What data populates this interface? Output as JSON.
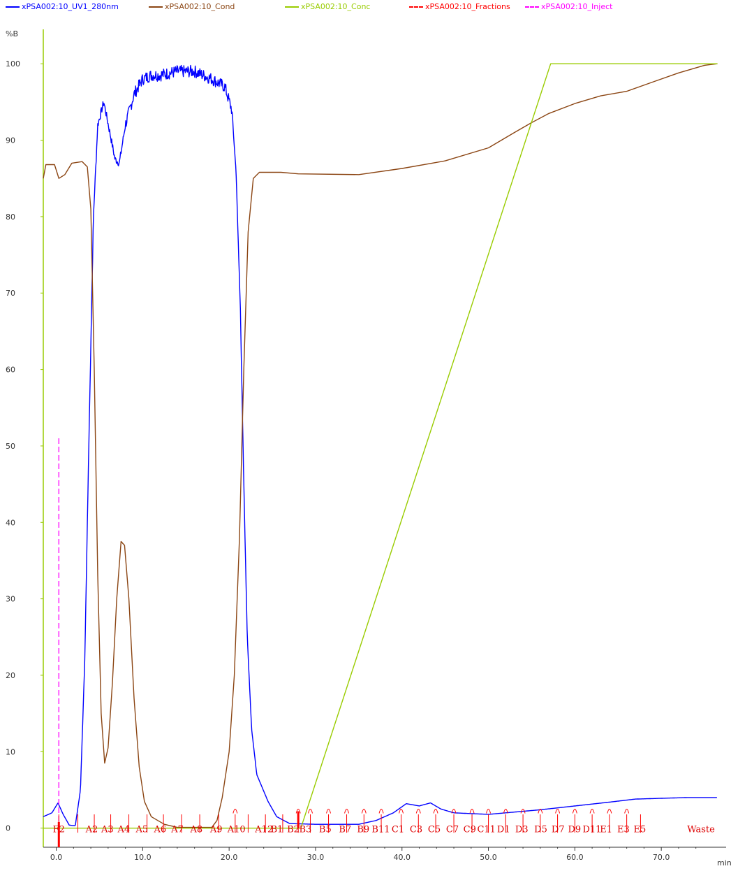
{
  "legend": [
    {
      "name": "xPSA002:10_UV1_280nm",
      "color": "#0000ff",
      "dash": "solid"
    },
    {
      "name": "xPSA002:10_Cond",
      "color": "#8b4513",
      "dash": "solid"
    },
    {
      "name": "xPSA002:10_Conc",
      "color": "#99cc00",
      "dash": "solid"
    },
    {
      "name": "xPSA002:10_Fractions",
      "color": "#ff0000",
      "dash": "dashed"
    },
    {
      "name": "xPSA002:10_Inject",
      "color": "#ff00ff",
      "dash": "dashed"
    }
  ],
  "chart_data": {
    "type": "line",
    "ylabel": "%B",
    "xlabel": "min",
    "xlim": [
      -1.5,
      77.5
    ],
    "ylim": [
      -2.5,
      104.5
    ],
    "x_ticks": [
      0.0,
      10.0,
      20.0,
      30.0,
      40.0,
      50.0,
      60.0,
      70.0
    ],
    "x_tick_labels": [
      "0.0",
      "10.0",
      "20.0",
      "30.0",
      "40.0",
      "50.0",
      "60.0",
      "70.0"
    ],
    "y_ticks": [
      0,
      10,
      20,
      30,
      40,
      50,
      60,
      70,
      80,
      90,
      100
    ],
    "y_tick_labels": [
      "0",
      "10",
      "20",
      "30",
      "40",
      "50",
      "60",
      "70",
      "80",
      "90",
      "100"
    ],
    "grid": false,
    "series": [
      {
        "name": "xPSA002:10_UV1_280nm",
        "color": "#0000ff",
        "noise": true,
        "points": [
          [
            -1.5,
            1.5
          ],
          [
            -0.5,
            2
          ],
          [
            0.2,
            3.3
          ],
          [
            0.8,
            1.8
          ],
          [
            1.5,
            0.4
          ],
          [
            2.2,
            0.3
          ],
          [
            2.8,
            5
          ],
          [
            3.3,
            22
          ],
          [
            3.8,
            52
          ],
          [
            4.3,
            80
          ],
          [
            4.8,
            92
          ],
          [
            5.5,
            95
          ],
          [
            6.2,
            91
          ],
          [
            6.8,
            87.5
          ],
          [
            7.3,
            87
          ],
          [
            8,
            92
          ],
          [
            9,
            96
          ],
          [
            10,
            98
          ],
          [
            11,
            98.5
          ],
          [
            12,
            98.5
          ],
          [
            14,
            99
          ],
          [
            16,
            99
          ],
          [
            18,
            98
          ],
          [
            19.5,
            97
          ],
          [
            20.3,
            94
          ],
          [
            20.8,
            86
          ],
          [
            21.3,
            68
          ],
          [
            21.7,
            45
          ],
          [
            22.1,
            25
          ],
          [
            22.6,
            13
          ],
          [
            23.2,
            7
          ],
          [
            24.5,
            3.5
          ],
          [
            25.5,
            1.5
          ],
          [
            27,
            0.6
          ],
          [
            30,
            0.5
          ],
          [
            35,
            0.5
          ],
          [
            37,
            1
          ],
          [
            39,
            2
          ],
          [
            40.5,
            3.2
          ],
          [
            42,
            2.9
          ],
          [
            43.3,
            3.3
          ],
          [
            44.5,
            2.5
          ],
          [
            46,
            2
          ],
          [
            50,
            1.8
          ],
          [
            53,
            2.1
          ],
          [
            56,
            2.4
          ],
          [
            60,
            2.9
          ],
          [
            64,
            3.4
          ],
          [
            67,
            3.8
          ],
          [
            70,
            3.9
          ],
          [
            73,
            4
          ],
          [
            76.5,
            4
          ]
        ]
      },
      {
        "name": "xPSA002:10_Cond",
        "color": "#8b4513",
        "noise": false,
        "points": [
          [
            -1.5,
            85
          ],
          [
            -1.2,
            86.8
          ],
          [
            -0.2,
            86.8
          ],
          [
            0.3,
            85
          ],
          [
            1,
            85.5
          ],
          [
            1.8,
            87
          ],
          [
            3,
            87.2
          ],
          [
            3.6,
            86.5
          ],
          [
            4,
            81
          ],
          [
            4.4,
            60
          ],
          [
            4.8,
            33
          ],
          [
            5.2,
            15
          ],
          [
            5.6,
            8.5
          ],
          [
            6,
            10.5
          ],
          [
            6.5,
            19
          ],
          [
            7,
            30
          ],
          [
            7.5,
            37.5
          ],
          [
            7.9,
            37
          ],
          [
            8.4,
            30
          ],
          [
            9,
            17
          ],
          [
            9.6,
            8
          ],
          [
            10.2,
            3.5
          ],
          [
            11,
            1.5
          ],
          [
            12.5,
            0.5
          ],
          [
            14,
            0.1
          ],
          [
            18,
            0.1
          ],
          [
            18.6,
            1
          ],
          [
            19.2,
            4
          ],
          [
            20,
            10
          ],
          [
            20.6,
            20
          ],
          [
            21.2,
            38
          ],
          [
            21.7,
            60
          ],
          [
            22.2,
            78
          ],
          [
            22.8,
            85
          ],
          [
            23.5,
            85.8
          ],
          [
            26,
            85.8
          ],
          [
            28,
            85.6
          ],
          [
            35,
            85.5
          ],
          [
            40,
            86.3
          ],
          [
            45,
            87.3
          ],
          [
            50,
            89
          ],
          [
            53,
            91
          ],
          [
            55,
            92.3
          ],
          [
            57,
            93.5
          ],
          [
            60,
            94.8
          ],
          [
            63,
            95.8
          ],
          [
            66,
            96.4
          ],
          [
            69,
            97.6
          ],
          [
            72,
            98.8
          ],
          [
            75,
            99.8
          ],
          [
            76.5,
            100
          ]
        ]
      },
      {
        "name": "xPSA002:10_Conc",
        "color": "#99cc00",
        "noise": false,
        "points": [
          [
            -1.5,
            0
          ],
          [
            28.3,
            0
          ],
          [
            57.2,
            100
          ],
          [
            76.5,
            100
          ]
        ]
      }
    ],
    "inject": {
      "name": "xPSA002:10_Inject",
      "x": 0.3,
      "y_top": 51,
      "color": "#ff00ff"
    },
    "fractions": {
      "name": "xPSA002:10_Fractions",
      "color": "#ff0000",
      "labels": [
        {
          "x": -0.4,
          "label": "F2"
        },
        {
          "x": 3.4,
          "label": "A2"
        },
        {
          "x": 5.2,
          "label": "A3"
        },
        {
          "x": 7.1,
          "label": "A4"
        },
        {
          "x": 9.2,
          "label": "A5"
        },
        {
          "x": 11.3,
          "label": "A6"
        },
        {
          "x": 13.3,
          "label": "A7"
        },
        {
          "x": 15.5,
          "label": "A8"
        },
        {
          "x": 17.8,
          "label": "A9"
        },
        {
          "x": 19.8,
          "label": "A10"
        },
        {
          "x": 23.0,
          "label": "A12"
        },
        {
          "x": 24.8,
          "label": "B1"
        },
        {
          "x": 26.7,
          "label": "B2"
        },
        {
          "x": 28.1,
          "label": "B3"
        },
        {
          "x": 30.4,
          "label": "B5"
        },
        {
          "x": 32.7,
          "label": "B7"
        },
        {
          "x": 34.8,
          "label": "B9"
        },
        {
          "x": 36.5,
          "label": "B11"
        },
        {
          "x": 38.8,
          "label": "C1"
        },
        {
          "x": 40.9,
          "label": "C3"
        },
        {
          "x": 43.0,
          "label": "C5"
        },
        {
          "x": 45.1,
          "label": "C7"
        },
        {
          "x": 47.1,
          "label": "C9"
        },
        {
          "x": 48.7,
          "label": "C11"
        },
        {
          "x": 51.0,
          "label": "D1"
        },
        {
          "x": 53.1,
          "label": "D3"
        },
        {
          "x": 55.3,
          "label": "D5"
        },
        {
          "x": 57.3,
          "label": "D7"
        },
        {
          "x": 59.2,
          "label": "D9"
        },
        {
          "x": 60.9,
          "label": "D11"
        },
        {
          "x": 62.9,
          "label": "E1"
        },
        {
          "x": 64.9,
          "label": "E3"
        },
        {
          "x": 66.8,
          "label": "E5"
        },
        {
          "x": 73.0,
          "label": "Waste"
        }
      ],
      "marks": [
        0.3,
        2.5,
        4.4,
        6.3,
        8.4,
        10.5,
        12.4,
        14.5,
        16.6,
        18.8,
        20.7,
        22.2,
        24.2,
        26.2,
        28.0,
        29.4,
        31.5,
        33.6,
        35.6,
        37.6,
        39.9,
        41.9,
        43.9,
        46.0,
        48.1,
        50.0,
        52.0,
        54.0,
        56.0,
        58.0,
        60.0,
        62.0,
        64.0,
        66.0,
        67.6
      ],
      "loop_marks": [
        20.7,
        28.0,
        29.4,
        31.5,
        33.6,
        35.6,
        37.6,
        39.9,
        41.9,
        43.9,
        46.0,
        48.1,
        50.0,
        52.0,
        54.0,
        56.0,
        58.0,
        60.0,
        62.0,
        64.0,
        66.0
      ]
    }
  }
}
